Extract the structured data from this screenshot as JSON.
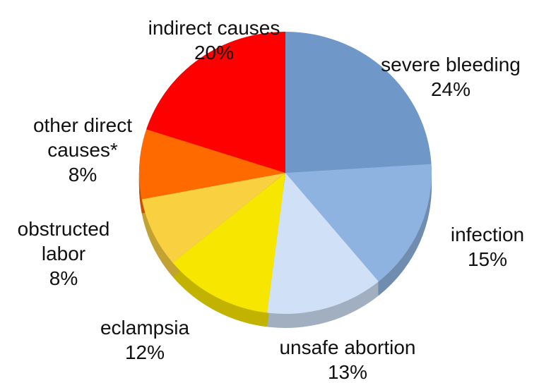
{
  "chart_data": {
    "type": "pie",
    "categories": [
      "severe bleeding",
      "infection",
      "unsafe abortion",
      "eclampsia",
      "obstructed labor",
      "other direct causes*",
      "indirect causes"
    ],
    "values": [
      24,
      15,
      13,
      12,
      8,
      8,
      20
    ],
    "value_labels": [
      "24%",
      "15%",
      "13%",
      "12%",
      "8%",
      "8%",
      "20%"
    ],
    "colors": [
      "#6f97c8",
      "#8fb3e0",
      "#cfe0f7",
      "#f7e600",
      "#f9d040",
      "#ff6a00",
      "#ff0000"
    ]
  }
}
